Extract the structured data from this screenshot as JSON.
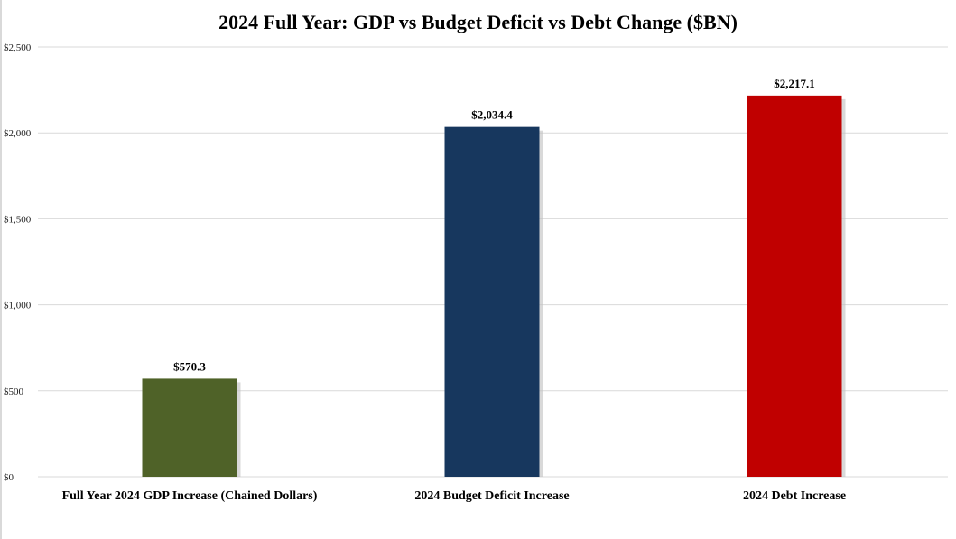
{
  "chart_data": {
    "type": "bar",
    "title": "2024 Full Year: GDP vs Budget Deficit vs Debt Change ($BN)",
    "categories": [
      "Full Year 2024 GDP Increase (Chained Dollars)",
      "2024 Budget Deficit Increase",
      "2024  Debt Increase"
    ],
    "values": [
      570.3,
      2034.4,
      2217.1
    ],
    "value_labels": [
      "$570.3",
      "$2,034.4",
      "$2,217.1"
    ],
    "colors": [
      "#4f6228",
      "#17375e",
      "#c00000"
    ],
    "ylim": [
      0,
      2500
    ],
    "yticks": [
      0,
      500,
      1000,
      1500,
      2000,
      2500
    ],
    "ytick_labels": [
      "$0",
      "$500",
      "$1,000",
      "$1,500",
      "$2,000",
      "$2,500"
    ],
    "grid": true,
    "xlabel": "",
    "ylabel": ""
  }
}
